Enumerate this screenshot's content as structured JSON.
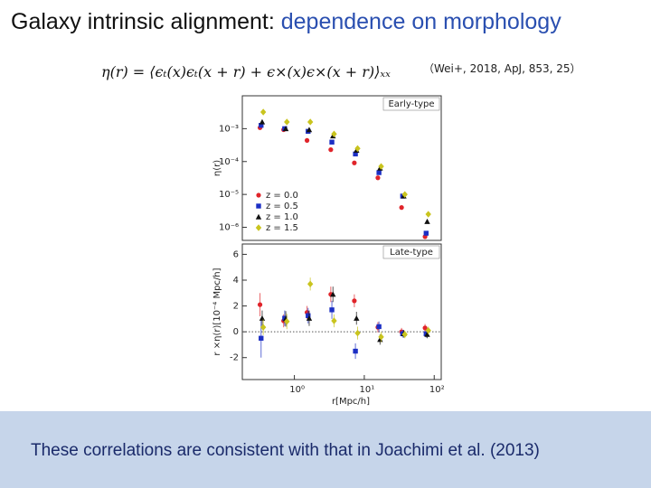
{
  "slide": {
    "title": [
      "Galaxy intrinsic alignment: ",
      "dependence on morphology"
    ],
    "formula": "η(r) = ⟨ϵₜ(x)ϵₜ(x + r) + ϵ×(x)ϵ×(x + r)⟩ₓₓ",
    "citation": "（Wei+, 2018, ApJ, 853, 25）",
    "footer": "These correlations are consistent with that in Joachimi et al. (2013)"
  },
  "chart_data": [
    {
      "type": "scatter",
      "panel_label": "Early-type",
      "ylabel": "η(r)",
      "xscale": "log",
      "yscale": "log",
      "legend": "lower left",
      "xlim": [
        0.18,
        126
      ],
      "ylim": [
        4e-07,
        0.01
      ],
      "yticks": [
        {
          "value": 0.001,
          "label": "10⁻³"
        },
        {
          "value": 0.0001,
          "label": "10⁻⁴"
        },
        {
          "value": 1e-05,
          "label": "10⁻⁵"
        },
        {
          "value": 1e-06,
          "label": "10⁻⁶"
        }
      ],
      "x": [
        0.34,
        0.74,
        1.6,
        3.5,
        7.6,
        16.5,
        36,
        78
      ],
      "series": [
        {
          "name": "z = 0.0",
          "color": "#e0242a",
          "marker": "circle",
          "values": [
            0.00107,
            0.00093,
            0.00044,
            0.00023,
            9.1e-05,
            3.2e-05,
            4e-06,
            5.2e-07
          ]
        },
        {
          "name": "z = 0.5",
          "color": "#1c2fc4",
          "marker": "square",
          "values": [
            0.00126,
            0.001,
            0.00083,
            0.00039,
            0.00017,
            4.6e-05,
            8.9e-06,
            6.6e-07
          ]
        },
        {
          "name": "z = 1.0",
          "color": "#111111",
          "marker": "triangle",
          "values": [
            0.0016,
            0.001,
            0.00093,
            0.0006,
            0.00022,
            6.3e-05,
            8.9e-06,
            1.5e-06
          ]
        },
        {
          "name": "z = 1.5",
          "color": "#c9c41e",
          "marker": "diamond",
          "values": [
            0.0032,
            0.0016,
            0.0016,
            0.00069,
            0.00025,
            7.1e-05,
            1e-05,
            2.5e-06
          ]
        }
      ]
    },
    {
      "type": "scatter",
      "panel_label": "Late-type",
      "ylabel": "r ×η(r)[10⁻⁴ Mpc/h]",
      "xlabel": "r[Mpc/h]",
      "xscale": "log",
      "yscale": "linear",
      "xlim": [
        0.18,
        126
      ],
      "ylim": [
        -3.7,
        6.8
      ],
      "xticks": [
        {
          "value": 1,
          "label": "10⁰"
        },
        {
          "value": 10,
          "label": "10¹"
        },
        {
          "value": 100,
          "label": "10²"
        }
      ],
      "yticks": [
        -2,
        0,
        2,
        4,
        6
      ],
      "x": [
        0.34,
        0.74,
        1.6,
        3.5,
        7.6,
        16.5,
        36,
        78
      ],
      "series": [
        {
          "name": "z = 0.0",
          "color": "#e0242a",
          "marker": "circle",
          "values": [
            2.1,
            0.85,
            1.5,
            2.9,
            2.4,
            0.35,
            0,
            0.3
          ],
          "errors": [
            0.9,
            0.5,
            0.5,
            0.6,
            0.5,
            0.4,
            0.3,
            0.3
          ]
        },
        {
          "name": "z = 0.5",
          "color": "#1c2fc4",
          "marker": "square",
          "values": [
            -0.5,
            1.05,
            1.25,
            1.7,
            -1.5,
            0.4,
            -0.15,
            -0.15
          ],
          "errors": [
            1.5,
            0.6,
            0.6,
            0.7,
            0.6,
            0.4,
            0.3,
            0.3
          ]
        },
        {
          "name": "z = 1.0",
          "color": "#111111",
          "marker": "triangle",
          "values": [
            1.05,
            1.0,
            1.05,
            2.9,
            1.05,
            -0.6,
            -0.15,
            -0.2
          ],
          "errors": [
            0.6,
            0.6,
            0.6,
            0.6,
            0.5,
            0.4,
            0.3,
            0.3
          ]
        },
        {
          "name": "z = 1.5",
          "color": "#c9c41e",
          "marker": "diamond",
          "values": [
            0.35,
            0.8,
            3.7,
            0.85,
            -0.1,
            -0.4,
            -0.2,
            0.1
          ],
          "errors": [
            0.6,
            0.6,
            0.5,
            0.5,
            0.5,
            0.4,
            0.3,
            0.3
          ]
        }
      ]
    }
  ]
}
